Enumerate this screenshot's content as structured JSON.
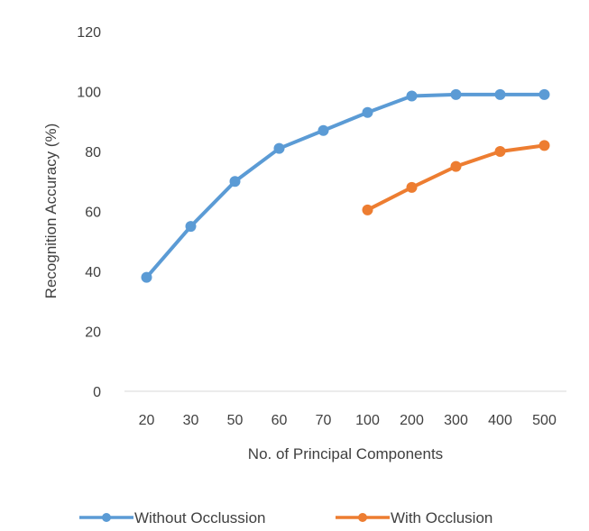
{
  "chart_data": {
    "type": "line",
    "categories": [
      "20",
      "30",
      "50",
      "60",
      "70",
      "100",
      "200",
      "300",
      "400",
      "500"
    ],
    "series": [
      {
        "name": "Without Occlussion",
        "color": "#5b9bd5",
        "values": [
          38,
          55,
          70,
          81,
          87,
          93,
          98.5,
          99,
          99,
          99
        ]
      },
      {
        "name": "With Occlusion",
        "color": "#ed7d31",
        "values": [
          null,
          null,
          null,
          null,
          null,
          60.5,
          68,
          75,
          80,
          82
        ]
      }
    ],
    "xlabel": "No. of Principal Components",
    "ylabel": "Recognition Accuracy (%)",
    "ylim": [
      0,
      120
    ],
    "yticks": [
      "0",
      "20",
      "40",
      "60",
      "80",
      "100",
      "120"
    ],
    "grid": false,
    "legend_position": "bottom"
  }
}
